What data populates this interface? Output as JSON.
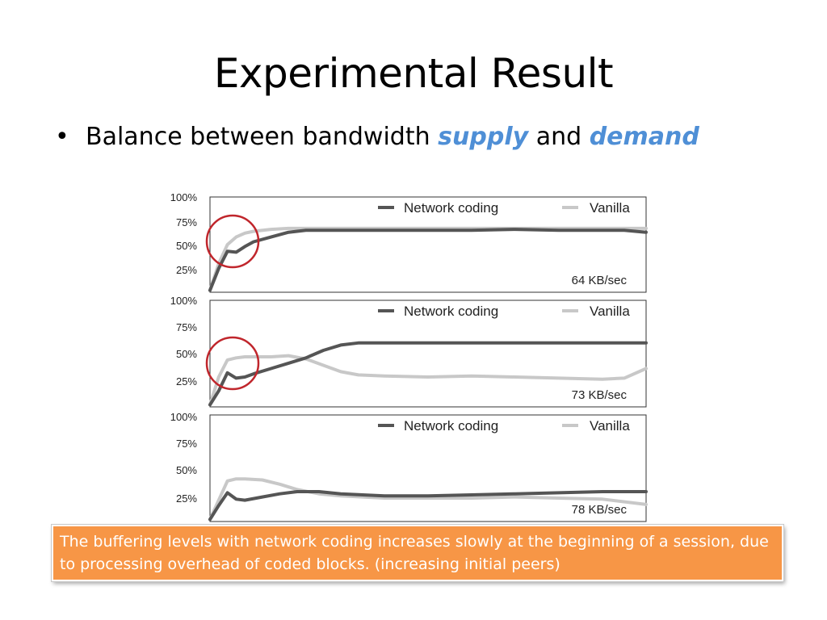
{
  "slide": {
    "title": "Experimental Result",
    "bullet": {
      "symbol": "•",
      "prefix": "Balance between bandwidth ",
      "word1": "supply",
      "middle": " and ",
      "word2": "demand"
    },
    "callout": "The buffering levels with network coding increases slowly at the beginning of a session, due to processing overhead of coded blocks. (increasing initial peers)",
    "colors": {
      "accent_blue": "#4f8fd6",
      "callout_orange": "#f79646",
      "network_coding": "#555555",
      "vanilla": "#c8c8c8",
      "circle_red": "#c0262c"
    }
  },
  "chart_data": [
    {
      "type": "line",
      "label": "64 KB/sec",
      "yticks": [
        "100%",
        "75%",
        "50%",
        "25%"
      ],
      "ylim": [
        0,
        100
      ],
      "xlim": [
        0,
        100
      ],
      "legend_position": "top-right",
      "highlight_circle": true,
      "series": [
        {
          "name": "Network coding",
          "x": [
            0,
            2,
            4,
            6,
            8,
            10,
            14,
            18,
            22,
            30,
            40,
            50,
            60,
            70,
            80,
            90,
            95,
            100
          ],
          "y": [
            2,
            25,
            43,
            42,
            48,
            53,
            58,
            63,
            65,
            65,
            65,
            65,
            65,
            66,
            65,
            65,
            65,
            63
          ]
        },
        {
          "name": "Vanilla",
          "x": [
            0,
            2,
            4,
            6,
            8,
            10,
            14,
            18,
            22,
            30,
            40,
            50,
            60,
            70,
            80,
            90,
            95,
            100
          ],
          "y": [
            2,
            30,
            50,
            58,
            62,
            64,
            66,
            67,
            67,
            67,
            67,
            67,
            67,
            67,
            67,
            67,
            67,
            67
          ]
        }
      ]
    },
    {
      "type": "line",
      "label": "73 KB/sec",
      "yticks": [
        "100%",
        "75%",
        "50%",
        "25%"
      ],
      "ylim": [
        0,
        100
      ],
      "xlim": [
        0,
        100
      ],
      "legend_position": "top-right",
      "highlight_circle": true,
      "series": [
        {
          "name": "Network coding",
          "x": [
            0,
            2,
            4,
            6,
            8,
            10,
            14,
            18,
            22,
            26,
            30,
            34,
            40,
            50,
            60,
            70,
            80,
            90,
            100
          ],
          "y": [
            2,
            15,
            32,
            27,
            28,
            31,
            36,
            41,
            46,
            53,
            58,
            60,
            60,
            60,
            60,
            60,
            60,
            60,
            60
          ]
        },
        {
          "name": "Vanilla",
          "x": [
            0,
            2,
            4,
            6,
            8,
            10,
            14,
            18,
            22,
            26,
            30,
            34,
            40,
            50,
            60,
            70,
            80,
            90,
            95,
            100
          ],
          "y": [
            2,
            28,
            44,
            46,
            47,
            47,
            47,
            48,
            45,
            39,
            33,
            30,
            29,
            28,
            29,
            28,
            27,
            26,
            27,
            36
          ]
        }
      ]
    },
    {
      "type": "line",
      "label": "78 KB/sec",
      "yticks": [
        "100%",
        "75%",
        "50%",
        "25%"
      ],
      "ylim": [
        0,
        100
      ],
      "xlim": [
        0,
        100
      ],
      "legend_position": "top-right",
      "highlight_circle": false,
      "series": [
        {
          "name": "Network coding",
          "x": [
            0,
            2,
            4,
            6,
            8,
            12,
            16,
            20,
            25,
            30,
            40,
            50,
            60,
            70,
            80,
            90,
            100
          ],
          "y": [
            2,
            15,
            27,
            21,
            20,
            23,
            26,
            28,
            28,
            26,
            24,
            24,
            25,
            26,
            27,
            28,
            28
          ]
        },
        {
          "name": "Vanilla",
          "x": [
            0,
            2,
            4,
            6,
            8,
            12,
            16,
            20,
            25,
            30,
            40,
            50,
            60,
            70,
            80,
            90,
            100
          ],
          "y": [
            2,
            20,
            38,
            40,
            40,
            39,
            35,
            30,
            26,
            24,
            22,
            22,
            22,
            23,
            22,
            21,
            16
          ]
        }
      ]
    }
  ]
}
